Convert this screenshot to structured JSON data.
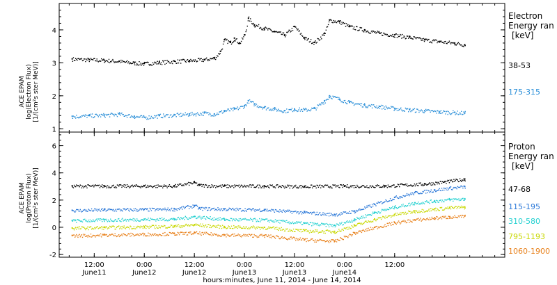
{
  "chart_data": [
    {
      "type": "scatter",
      "panel": "electron",
      "ylabel": [
        "ACE EPAM",
        "log(Electron Flux)",
        "[1/(cm²s ster MeV)]"
      ],
      "ylim": [
        0.9,
        4.8
      ],
      "yticks": [
        1,
        2,
        3,
        4
      ],
      "legend_title": [
        "Electron",
        "Energy ran",
        "[keV]"
      ],
      "series": [
        {
          "name": "38-53",
          "color": "#000000",
          "points": [
            [
              -0.72,
              3.12
            ],
            [
              -0.55,
              3.1
            ],
            [
              -0.4,
              3.08
            ],
            [
              -0.25,
              3.05
            ],
            [
              -0.1,
              3.0
            ],
            [
              0.0,
              2.98
            ],
            [
              0.15,
              3.02
            ],
            [
              0.3,
              3.05
            ],
            [
              0.45,
              3.07
            ],
            [
              0.6,
              3.1
            ],
            [
              0.7,
              3.15
            ],
            [
              0.76,
              3.35
            ],
            [
              0.8,
              3.7
            ],
            [
              0.86,
              3.62
            ],
            [
              0.9,
              3.75
            ],
            [
              0.95,
              3.6
            ],
            [
              1.0,
              3.85
            ],
            [
              1.04,
              4.35
            ],
            [
              1.1,
              4.15
            ],
            [
              1.2,
              4.05
            ],
            [
              1.3,
              3.95
            ],
            [
              1.4,
              3.85
            ],
            [
              1.5,
              4.1
            ],
            [
              1.6,
              3.75
            ],
            [
              1.7,
              3.62
            ],
            [
              1.8,
              3.9
            ],
            [
              1.85,
              4.3
            ],
            [
              1.95,
              4.25
            ],
            [
              2.05,
              4.1
            ],
            [
              2.2,
              4.0
            ],
            [
              2.35,
              3.9
            ],
            [
              2.5,
              3.85
            ],
            [
              2.65,
              3.78
            ],
            [
              2.8,
              3.7
            ],
            [
              2.95,
              3.65
            ],
            [
              3.1,
              3.6
            ],
            [
              3.2,
              3.55
            ]
          ]
        },
        {
          "name": "175-315",
          "color": "#2b8fd8",
          "points": [
            [
              -0.72,
              1.38
            ],
            [
              -0.55,
              1.4
            ],
            [
              -0.4,
              1.42
            ],
            [
              -0.25,
              1.45
            ],
            [
              -0.1,
              1.38
            ],
            [
              0.0,
              1.35
            ],
            [
              0.15,
              1.4
            ],
            [
              0.3,
              1.42
            ],
            [
              0.45,
              1.45
            ],
            [
              0.6,
              1.48
            ],
            [
              0.7,
              1.45
            ],
            [
              0.8,
              1.55
            ],
            [
              0.9,
              1.6
            ],
            [
              1.0,
              1.7
            ],
            [
              1.04,
              1.85
            ],
            [
              1.1,
              1.75
            ],
            [
              1.2,
              1.65
            ],
            [
              1.3,
              1.6
            ],
            [
              1.4,
              1.55
            ],
            [
              1.5,
              1.6
            ],
            [
              1.6,
              1.58
            ],
            [
              1.7,
              1.62
            ],
            [
              1.8,
              1.85
            ],
            [
              1.85,
              2.0
            ],
            [
              1.95,
              1.9
            ],
            [
              2.05,
              1.8
            ],
            [
              2.2,
              1.72
            ],
            [
              2.35,
              1.68
            ],
            [
              2.5,
              1.62
            ],
            [
              2.65,
              1.58
            ],
            [
              2.8,
              1.55
            ],
            [
              2.95,
              1.52
            ],
            [
              3.1,
              1.5
            ],
            [
              3.2,
              1.48
            ]
          ]
        }
      ]
    },
    {
      "type": "scatter",
      "panel": "proton",
      "ylabel": [
        "ACE EPAM",
        "log(Proton Flux)",
        "[1/(cm²s ster MeV)]"
      ],
      "ylim": [
        -2.2,
        7.0
      ],
      "yticks": [
        -2,
        0,
        2,
        4,
        6
      ],
      "legend_title": [
        "Proton",
        "Energy ran",
        "[keV]"
      ],
      "series": [
        {
          "name": "47-68",
          "color": "#000000",
          "points": [
            [
              -0.72,
              3.05
            ],
            [
              -0.4,
              3.05
            ],
            [
              0.0,
              3.05
            ],
            [
              0.3,
              3.05
            ],
            [
              0.5,
              3.3
            ],
            [
              0.55,
              3.1
            ],
            [
              0.8,
              3.05
            ],
            [
              1.2,
              3.05
            ],
            [
              1.6,
              3.02
            ],
            [
              2.0,
              3.05
            ],
            [
              2.4,
              3.05
            ],
            [
              2.8,
              3.2
            ],
            [
              3.0,
              3.35
            ],
            [
              3.2,
              3.55
            ]
          ]
        },
        {
          "name": "115-195",
          "color": "#2b78d8",
          "points": [
            [
              -0.72,
              1.25
            ],
            [
              -0.4,
              1.3
            ],
            [
              0.0,
              1.32
            ],
            [
              0.3,
              1.35
            ],
            [
              0.5,
              1.6
            ],
            [
              0.55,
              1.4
            ],
            [
              0.8,
              1.35
            ],
            [
              1.2,
              1.3
            ],
            [
              1.6,
              1.1
            ],
            [
              1.9,
              0.95
            ],
            [
              2.1,
              1.2
            ],
            [
              2.3,
              1.7
            ],
            [
              2.5,
              2.2
            ],
            [
              2.7,
              2.55
            ],
            [
              2.9,
              2.75
            ],
            [
              3.05,
              2.9
            ],
            [
              3.2,
              3.0
            ]
          ]
        },
        {
          "name": "310-580",
          "color": "#22d0d0",
          "points": [
            [
              -0.72,
              0.5
            ],
            [
              -0.4,
              0.55
            ],
            [
              0.0,
              0.6
            ],
            [
              0.3,
              0.62
            ],
            [
              0.5,
              0.8
            ],
            [
              0.8,
              0.6
            ],
            [
              1.2,
              0.55
            ],
            [
              1.6,
              0.3
            ],
            [
              1.9,
              0.15
            ],
            [
              2.1,
              0.6
            ],
            [
              2.3,
              1.1
            ],
            [
              2.5,
              1.5
            ],
            [
              2.7,
              1.8
            ],
            [
              2.9,
              1.95
            ],
            [
              3.05,
              2.05
            ],
            [
              3.2,
              2.1
            ]
          ]
        },
        {
          "name": "795-1193",
          "color": "#c8d800",
          "points": [
            [
              -0.72,
              -0.05
            ],
            [
              -0.4,
              0.0
            ],
            [
              0.0,
              0.05
            ],
            [
              0.3,
              0.1
            ],
            [
              0.5,
              0.2
            ],
            [
              0.8,
              0.05
            ],
            [
              1.2,
              0.0
            ],
            [
              1.6,
              -0.25
            ],
            [
              1.9,
              -0.3
            ],
            [
              2.1,
              0.15
            ],
            [
              2.3,
              0.6
            ],
            [
              2.5,
              0.95
            ],
            [
              2.7,
              1.2
            ],
            [
              2.9,
              1.35
            ],
            [
              3.05,
              1.45
            ],
            [
              3.2,
              1.5
            ]
          ]
        },
        {
          "name": "1060-1900",
          "color": "#e8801a",
          "points": [
            [
              -0.72,
              -0.6
            ],
            [
              -0.4,
              -0.55
            ],
            [
              0.0,
              -0.5
            ],
            [
              0.3,
              -0.45
            ],
            [
              0.5,
              -0.4
            ],
            [
              0.8,
              -0.55
            ],
            [
              1.2,
              -0.6
            ],
            [
              1.6,
              -0.9
            ],
            [
              1.9,
              -1.0
            ],
            [
              2.1,
              -0.4
            ],
            [
              2.3,
              0.0
            ],
            [
              2.5,
              0.35
            ],
            [
              2.7,
              0.55
            ],
            [
              2.9,
              0.7
            ],
            [
              3.05,
              0.78
            ],
            [
              3.2,
              0.82
            ]
          ]
        }
      ]
    }
  ],
  "time_axis": {
    "xlim": [
      -0.85,
      3.6
    ],
    "ticks": [
      {
        "x": -0.5,
        "time": "12:00",
        "date": "June11"
      },
      {
        "x": 0.0,
        "time": "0:00",
        "date": "June12"
      },
      {
        "x": 0.5,
        "time": "12:00",
        "date": "June12"
      },
      {
        "x": 1.0,
        "time": "0:00",
        "date": "June13"
      },
      {
        "x": 1.5,
        "time": "12:00",
        "date": "June13"
      },
      {
        "x": 2.0,
        "time": "0:00",
        "date": "June14"
      },
      {
        "x": 2.5,
        "time": "12:00",
        "date": ""
      }
    ],
    "xlabel": "hours:minutes, June 11, 2014 - June 14, 2014"
  }
}
